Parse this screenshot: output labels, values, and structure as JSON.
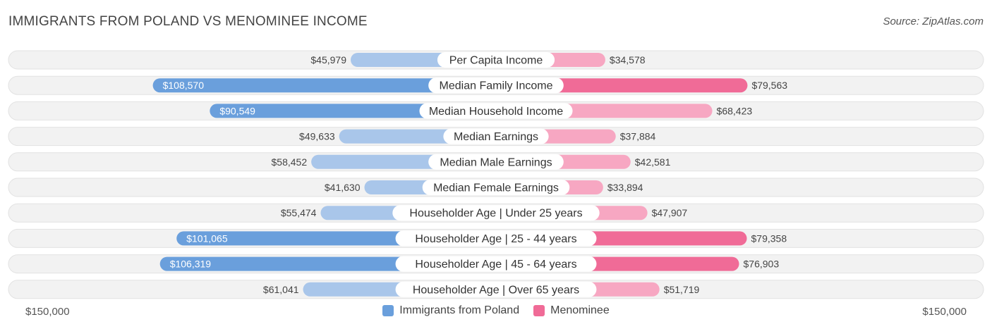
{
  "header": {
    "title": "IMMIGRANTS FROM POLAND VS MENOMINEE INCOME",
    "source": "Source: ZipAtlas.com"
  },
  "axis": {
    "left_label": "$150,000",
    "right_label": "$150,000"
  },
  "legend": {
    "left": "Immigrants from Poland",
    "right": "Menominee"
  },
  "colors": {
    "left_strong": "#6a9fdc",
    "left_light": "#a9c6ea",
    "right_strong": "#f06b97",
    "right_light": "#f7a7c2",
    "row_bg": "#f0f0f0"
  },
  "chart_data": {
    "type": "bar",
    "orientation": "horizontal-diverging",
    "title": "IMMIGRANTS FROM POLAND VS MENOMINEE INCOME",
    "xlim": [
      -150000,
      150000
    ],
    "categories": [
      "Per Capita Income",
      "Median Family Income",
      "Median Household Income",
      "Median Earnings",
      "Median Male Earnings",
      "Median Female Earnings",
      "Householder Age | Under 25 years",
      "Householder Age | 25 - 44 years",
      "Householder Age | 45 - 64 years",
      "Householder Age | Over 65 years"
    ],
    "series": [
      {
        "name": "Immigrants from Poland",
        "side": "left",
        "values": [
          45979,
          108570,
          90549,
          49633,
          58452,
          41630,
          55474,
          101065,
          106319,
          61041
        ],
        "labels": [
          "$45,979",
          "$108,570",
          "$90,549",
          "$49,633",
          "$58,452",
          "$41,630",
          "$55,474",
          "$101,065",
          "$106,319",
          "$61,041"
        ]
      },
      {
        "name": "Menominee",
        "side": "right",
        "values": [
          34578,
          79563,
          68423,
          37884,
          42581,
          33894,
          47907,
          79358,
          76903,
          51719
        ],
        "labels": [
          "$34,578",
          "$79,563",
          "$68,423",
          "$37,884",
          "$42,581",
          "$33,894",
          "$47,907",
          "$79,358",
          "$76,903",
          "$51,719"
        ]
      }
    ]
  }
}
